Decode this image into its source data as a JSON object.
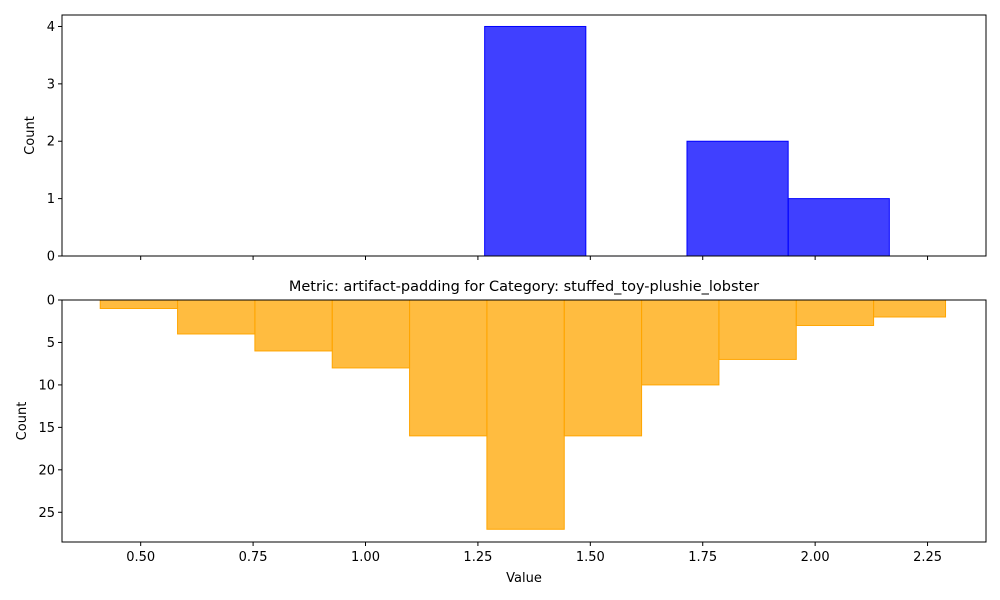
{
  "chart_data": [
    {
      "type": "histogram",
      "panel": "top",
      "title": "",
      "xlabel": "",
      "ylabel": "Count",
      "bin_edges": [
        1.265,
        1.49,
        1.715,
        1.94,
        2.165
      ],
      "counts": [
        4,
        0,
        2,
        1
      ],
      "xlim": [
        0.325,
        2.38
      ],
      "ylim": [
        0,
        4.2
      ],
      "yticks": [
        0,
        1,
        2,
        3,
        4
      ],
      "x_tick_labels_visible": false,
      "orientation": "normal",
      "color": "#0000ff",
      "alpha": 0.75,
      "edge_color": "#0000ff"
    },
    {
      "type": "histogram",
      "panel": "bottom",
      "title": "Metric: artifact-padding for Category: stuffed_toy-plushie_lobster",
      "xlabel": "Value",
      "ylabel": "Count",
      "bin_edges": [
        0.41,
        0.582,
        0.754,
        0.926,
        1.098,
        1.27,
        1.442,
        1.614,
        1.786,
        1.958,
        2.13,
        2.29
      ],
      "counts": [
        1,
        4,
        6,
        8,
        16,
        27,
        16,
        10,
        7,
        3,
        2
      ],
      "xlim": [
        0.325,
        2.38
      ],
      "ylim": [
        0,
        28.5
      ],
      "yticks": [
        0,
        5,
        10,
        15,
        20,
        25
      ],
      "xticks": [
        0.5,
        0.75,
        1.0,
        1.25,
        1.5,
        1.75,
        2.0,
        2.25
      ],
      "xtick_labels": [
        "0.50",
        "0.75",
        "1.00",
        "1.25",
        "1.50",
        "1.75",
        "2.00",
        "2.25"
      ],
      "orientation": "inverted",
      "color": "#ffa500",
      "alpha": 0.75,
      "edge_color": "#ffa500"
    }
  ]
}
